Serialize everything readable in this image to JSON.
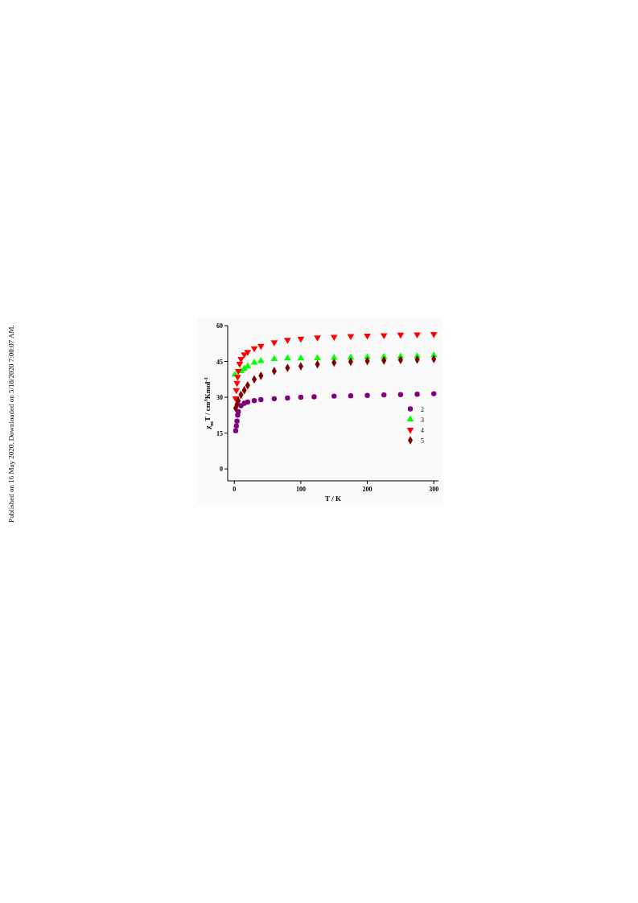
{
  "chart_data": {
    "type": "scatter",
    "xlabel": "T / K",
    "ylabel": "χ$_{m}$T / cm$^{3}$Kmol$^{-1}$",
    "xlim": [
      -10,
      307
    ],
    "ylim": [
      -5,
      60
    ],
    "xticks": [
      0,
      100,
      200,
      300
    ],
    "yticks": [
      0,
      15,
      30,
      45,
      60
    ],
    "legend": "right",
    "grid": false,
    "annotations": [
      "Published on 16 May 2020. Downloaded on 5/18/2020 7:00:07 AM."
    ],
    "series": [
      {
        "name": "2",
        "color": "#800080",
        "marker": "circle",
        "x": [
          2,
          3,
          4,
          5,
          6,
          10,
          15,
          20,
          30,
          40,
          60,
          80,
          100,
          120,
          150,
          175,
          200,
          225,
          250,
          275,
          300
        ],
        "values": [
          16,
          18,
          20,
          22.5,
          24,
          26.5,
          27.5,
          28,
          28.6,
          29,
          29.4,
          29.7,
          30,
          30.2,
          30.5,
          30.6,
          30.8,
          31,
          31.1,
          31.3,
          31.5
        ]
      },
      {
        "name": "3",
        "color": "#00ff00",
        "marker": "triangle",
        "x": [
          1,
          10,
          15,
          20,
          30,
          40,
          60,
          80,
          100,
          125,
          150,
          175,
          200,
          225,
          250,
          275,
          300
        ],
        "values": [
          39.5,
          41,
          42,
          43,
          44.5,
          45.2,
          46,
          46.3,
          46.3,
          46.4,
          46.5,
          46.6,
          46.8,
          46.9,
          47,
          47.2,
          47.5
        ]
      },
      {
        "name": "4",
        "color": "#ff0000",
        "marker": "triangle-down",
        "x": [
          2,
          3,
          4,
          5,
          6,
          8,
          10,
          15,
          20,
          30,
          40,
          60,
          80,
          100,
          125,
          150,
          175,
          200,
          225,
          250,
          275,
          300
        ],
        "values": [
          29.5,
          33,
          36,
          38.5,
          41,
          44,
          46,
          48,
          49,
          50.5,
          51.5,
          53,
          54,
          54.5,
          55,
          55.3,
          55.6,
          55.8,
          56,
          56.2,
          56.3,
          56.5
        ]
      },
      {
        "name": "5",
        "color": "#800000",
        "marker": "diamond",
        "x": [
          2,
          4,
          6,
          10,
          15,
          20,
          30,
          40,
          60,
          80,
          100,
          125,
          150,
          175,
          200,
          225,
          250,
          275,
          300
        ],
        "values": [
          25.5,
          27,
          28.5,
          31,
          33,
          35,
          37.5,
          39,
          41,
          42.3,
          43,
          43.8,
          44.5,
          44.9,
          45.2,
          45.4,
          45.6,
          45.8,
          46
        ]
      }
    ]
  }
}
